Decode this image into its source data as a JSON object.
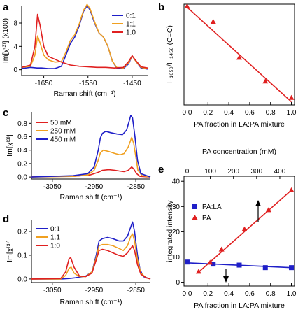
{
  "colors": {
    "blue": "#1f1fc8",
    "orange": "#f0a020",
    "red": "#e02020",
    "axis": "#000000"
  },
  "chart_data": [
    {
      "panel": "a",
      "type": "line",
      "xlabel": "Raman shift (cm⁻¹)",
      "ylabel": "Im[χ⁽³⁾] (x100)",
      "x_reversed": true,
      "xlim": [
        1700,
        1415
      ],
      "ylim": [
        -1,
        11
      ],
      "xticks": [
        "-1650",
        "-1550",
        "-1450"
      ],
      "yticks": [
        "0",
        "4",
        "8"
      ],
      "legend": [
        "0:1",
        "1:1",
        "1:0"
      ],
      "legend_position": "top-right",
      "series": [
        {
          "name": "0:1",
          "color": "blue",
          "points": [
            [
              1700,
              0.2
            ],
            [
              1680,
              0.4
            ],
            [
              1665,
              0.3
            ],
            [
              1655,
              0.3
            ],
            [
              1640,
              0.2
            ],
            [
              1625,
              0.2
            ],
            [
              1610,
              0.6
            ],
            [
              1600,
              2.5
            ],
            [
              1590,
              4.5
            ],
            [
              1580,
              5.6
            ],
            [
              1570,
              7.5
            ],
            [
              1560,
              10
            ],
            [
              1552,
              11
            ],
            [
              1545,
              10.2
            ],
            [
              1535,
              8
            ],
            [
              1525,
              6.3
            ],
            [
              1515,
              5.6
            ],
            [
              1505,
              4
            ],
            [
              1495,
              1.5
            ],
            [
              1485,
              0.3
            ],
            [
              1470,
              0.2
            ],
            [
              1458,
              1
            ],
            [
              1450,
              2.4
            ],
            [
              1442,
              1.5
            ],
            [
              1430,
              0.3
            ],
            [
              1415,
              0.1
            ]
          ]
        },
        {
          "name": "1:1",
          "color": "orange",
          "points": [
            [
              1700,
              0.4
            ],
            [
              1680,
              0.6
            ],
            [
              1670,
              2.5
            ],
            [
              1664,
              5.8
            ],
            [
              1658,
              4.5
            ],
            [
              1650,
              2.5
            ],
            [
              1640,
              1.7
            ],
            [
              1625,
              1.3
            ],
            [
              1610,
              1.4
            ],
            [
              1600,
              3
            ],
            [
              1590,
              5
            ],
            [
              1580,
              6
            ],
            [
              1570,
              7.8
            ],
            [
              1560,
              10.2
            ],
            [
              1552,
              11.2
            ],
            [
              1545,
              10.4
            ],
            [
              1535,
              8.2
            ],
            [
              1525,
              6.3
            ],
            [
              1515,
              5.6
            ],
            [
              1505,
              4
            ],
            [
              1495,
              1.5
            ],
            [
              1485,
              0.4
            ],
            [
              1470,
              0.3
            ],
            [
              1458,
              1.2
            ],
            [
              1450,
              2.4
            ],
            [
              1442,
              1.5
            ],
            [
              1430,
              0.4
            ],
            [
              1415,
              0.2
            ]
          ]
        },
        {
          "name": "1:0",
          "color": "red",
          "points": [
            [
              1700,
              0.4
            ],
            [
              1680,
              0.8
            ],
            [
              1670,
              4
            ],
            [
              1664,
              9.5
            ],
            [
              1658,
              7.5
            ],
            [
              1650,
              4
            ],
            [
              1640,
              2.3
            ],
            [
              1625,
              1.8
            ],
            [
              1610,
              1.3
            ],
            [
              1590,
              0.8
            ],
            [
              1570,
              0.6
            ],
            [
              1550,
              0.5
            ],
            [
              1530,
              0.4
            ],
            [
              1510,
              0.4
            ],
            [
              1490,
              0.3
            ],
            [
              1470,
              0.4
            ],
            [
              1458,
              1.4
            ],
            [
              1450,
              2.4
            ],
            [
              1442,
              1.6
            ],
            [
              1430,
              0.5
            ],
            [
              1415,
              0.3
            ]
          ]
        }
      ]
    },
    {
      "panel": "b",
      "type": "scatter",
      "xlabel": "PA fraction in LA:PA mixture",
      "ylabel": "I₋₁₆₅₀/I₋₁₄₅₀ (C=C)",
      "xlim": [
        -0.03,
        1.03
      ],
      "ylim": [
        -0.3,
        9.5
      ],
      "xticks": [
        "0.0",
        "0.2",
        "0.4",
        "0.6",
        "0.8",
        "1.0"
      ],
      "series": [
        {
          "name": "",
          "color": "red",
          "points": [
            [
              0.0,
              9.3
            ],
            [
              0.25,
              7.8
            ],
            [
              0.5,
              4.3
            ],
            [
              0.75,
              2.0
            ],
            [
              1.0,
              0.4
            ]
          ],
          "fit": [
            [
              0.0,
              9.2
            ],
            [
              1.0,
              0.0
            ]
          ]
        }
      ]
    },
    {
      "panel": "c",
      "type": "line",
      "xlabel": "Raman shift (cm⁻¹)",
      "ylabel": "Im[χ⁽³⁾]",
      "x_reversed": true,
      "xlim": [
        3100,
        2815
      ],
      "ylim": [
        -0.03,
        0.97
      ],
      "xticks": [
        "-3050",
        "-2950",
        "-2850"
      ],
      "yticks": [
        "0.0",
        "0.2",
        "0.4",
        "0.6",
        "0.8"
      ],
      "legend": [
        "50 mM",
        "250 mM",
        "450 mM"
      ],
      "legend_position": "top-left",
      "series": [
        {
          "name": "50 mM",
          "color": "red",
          "points": [
            [
              3100,
              0.01
            ],
            [
              3000,
              0.01
            ],
            [
              2960,
              0.03
            ],
            [
              2940,
              0.07
            ],
            [
              2930,
              0.1
            ],
            [
              2915,
              0.11
            ],
            [
              2900,
              0.1
            ],
            [
              2890,
              0.09
            ],
            [
              2878,
              0.08
            ],
            [
              2868,
              0.1
            ],
            [
              2860,
              0.15
            ],
            [
              2855,
              0.12
            ],
            [
              2848,
              0.05
            ],
            [
              2840,
              0.01
            ],
            [
              2815,
              0.0
            ]
          ]
        },
        {
          "name": "250 mM",
          "color": "orange",
          "points": [
            [
              3100,
              0.0
            ],
            [
              3000,
              0.01
            ],
            [
              2965,
              0.03
            ],
            [
              2950,
              0.1
            ],
            [
              2940,
              0.25
            ],
            [
              2935,
              0.36
            ],
            [
              2928,
              0.4
            ],
            [
              2915,
              0.38
            ],
            [
              2900,
              0.35
            ],
            [
              2888,
              0.33
            ],
            [
              2878,
              0.35
            ],
            [
              2868,
              0.45
            ],
            [
              2860,
              0.59
            ],
            [
              2855,
              0.5
            ],
            [
              2850,
              0.3
            ],
            [
              2845,
              0.1
            ],
            [
              2835,
              0.02
            ],
            [
              2815,
              0.0
            ]
          ]
        },
        {
          "name": "450 mM",
          "color": "blue",
          "points": [
            [
              3100,
              0.0
            ],
            [
              3000,
              0.02
            ],
            [
              2965,
              0.05
            ],
            [
              2950,
              0.15
            ],
            [
              2940,
              0.4
            ],
            [
              2935,
              0.58
            ],
            [
              2930,
              0.65
            ],
            [
              2922,
              0.68
            ],
            [
              2910,
              0.66
            ],
            [
              2895,
              0.64
            ],
            [
              2882,
              0.63
            ],
            [
              2872,
              0.7
            ],
            [
              2862,
              0.92
            ],
            [
              2858,
              0.88
            ],
            [
              2852,
              0.6
            ],
            [
              2846,
              0.25
            ],
            [
              2838,
              0.05
            ],
            [
              2815,
              0.0
            ]
          ]
        }
      ]
    },
    {
      "panel": "d",
      "type": "line",
      "xlabel": "Raman shift (cm⁻¹)",
      "ylabel": "Im[χ⁽³⁾]",
      "x_reversed": true,
      "xlim": [
        3100,
        2815
      ],
      "ylim": [
        -0.015,
        0.25
      ],
      "xticks": [
        "-3050",
        "-2950",
        "-2850"
      ],
      "yticks": [
        "0.0",
        "0.1",
        "0.2"
      ],
      "legend": [
        "0:1",
        "1.1",
        "1:0"
      ],
      "legend_position": "top-left",
      "series": [
        {
          "name": "0:1",
          "color": "blue",
          "points": [
            [
              3100,
              0.0
            ],
            [
              3030,
              0.0
            ],
            [
              3010,
              0.002
            ],
            [
              2995,
              0.005
            ],
            [
              2970,
              0.012
            ],
            [
              2955,
              0.03
            ],
            [
              2945,
              0.1
            ],
            [
              2938,
              0.16
            ],
            [
              2930,
              0.17
            ],
            [
              2918,
              0.175
            ],
            [
              2905,
              0.17
            ],
            [
              2890,
              0.16
            ],
            [
              2880,
              0.16
            ],
            [
              2870,
              0.18
            ],
            [
              2862,
              0.22
            ],
            [
              2858,
              0.24
            ],
            [
              2853,
              0.2
            ],
            [
              2846,
              0.1
            ],
            [
              2840,
              0.04
            ],
            [
              2832,
              0.01
            ],
            [
              2815,
              0.0
            ]
          ]
        },
        {
          "name": "1.1",
          "color": "orange",
          "points": [
            [
              3100,
              0.0
            ],
            [
              3030,
              0.0
            ],
            [
              3018,
              0.015
            ],
            [
              3010,
              0.045
            ],
            [
              3005,
              0.05
            ],
            [
              2998,
              0.025
            ],
            [
              2985,
              0.01
            ],
            [
              2970,
              0.01
            ],
            [
              2955,
              0.03
            ],
            [
              2945,
              0.09
            ],
            [
              2938,
              0.14
            ],
            [
              2930,
              0.145
            ],
            [
              2918,
              0.145
            ],
            [
              2905,
              0.14
            ],
            [
              2892,
              0.13
            ],
            [
              2880,
              0.12
            ],
            [
              2870,
              0.14
            ],
            [
              2862,
              0.18
            ],
            [
              2858,
              0.19
            ],
            [
              2853,
              0.16
            ],
            [
              2846,
              0.08
            ],
            [
              2838,
              0.025
            ],
            [
              2825,
              0.005
            ],
            [
              2815,
              0.0
            ]
          ]
        },
        {
          "name": "1:0",
          "color": "red",
          "points": [
            [
              3100,
              0.0
            ],
            [
              3030,
              0.002
            ],
            [
              3018,
              0.03
            ],
            [
              3010,
              0.085
            ],
            [
              3006,
              0.09
            ],
            [
              2998,
              0.05
            ],
            [
              2985,
              0.012
            ],
            [
              2970,
              0.01
            ],
            [
              2955,
              0.025
            ],
            [
              2945,
              0.08
            ],
            [
              2938,
              0.12
            ],
            [
              2930,
              0.125
            ],
            [
              2918,
              0.12
            ],
            [
              2905,
              0.11
            ],
            [
              2892,
              0.1
            ],
            [
              2880,
              0.095
            ],
            [
              2870,
              0.11
            ],
            [
              2862,
              0.13
            ],
            [
              2858,
              0.14
            ],
            [
              2853,
              0.12
            ],
            [
              2846,
              0.06
            ],
            [
              2838,
              0.02
            ],
            [
              2825,
              0.005
            ],
            [
              2815,
              0.0
            ]
          ]
        }
      ]
    },
    {
      "panel": "e",
      "type": "scatter",
      "xlabel": "PA fraction in LA:PA mixture",
      "xlabel_top": "PA concentration (mM)",
      "ylabel": "integrated intensity",
      "xlim": [
        -0.03,
        1.03
      ],
      "ylim": [
        -1.5,
        42
      ],
      "xticks": [
        "0.0",
        "0.2",
        "0.4",
        "0.6",
        "0.8",
        "1.0"
      ],
      "xticks_top": [
        "0",
        "100",
        "200",
        "300",
        "400"
      ],
      "yticks": [
        "0",
        "10",
        "20",
        "30",
        "40"
      ],
      "legend": [
        "PA:LA",
        "PA"
      ],
      "legend_position": "left",
      "series": [
        {
          "name": "PA:LA",
          "color": "blue",
          "marker": "square",
          "points": [
            [
              0.0,
              8.0
            ],
            [
              0.25,
              7.2
            ],
            [
              0.5,
              6.8
            ],
            [
              0.75,
              5.8
            ],
            [
              1.0,
              5.8
            ]
          ],
          "fit": [
            [
              0.0,
              7.7
            ],
            [
              1.0,
              5.8
            ]
          ]
        },
        {
          "name": "PA",
          "color": "red",
          "marker": "triangle",
          "points": [
            [
              0.11,
              4.2
            ],
            [
              0.22,
              7.8
            ],
            [
              0.33,
              13.0
            ],
            [
              0.55,
              21.0
            ],
            [
              0.78,
              28.6
            ],
            [
              1.0,
              36.5
            ]
          ],
          "fit": [
            [
              0.11,
              4.0
            ],
            [
              1.0,
              36.5
            ]
          ]
        }
      ]
    }
  ]
}
